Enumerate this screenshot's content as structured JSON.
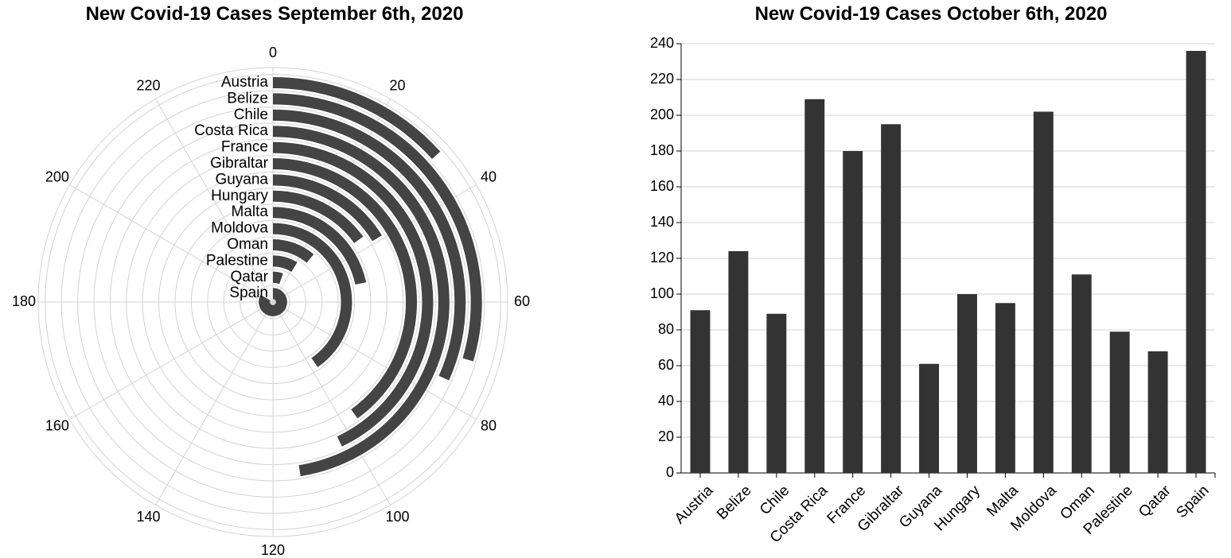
{
  "colors": {
    "bar": "#333333",
    "ring": "#444444",
    "grid": "#d3d3d3",
    "axis": "#000000"
  },
  "chart_data": [
    {
      "type": "radial-bar",
      "title": "New Covid-19 Cases September 6th, 2020",
      "angular_max": 240,
      "angular_ticks": [
        0,
        20,
        40,
        60,
        80,
        100,
        120,
        140,
        160,
        180,
        200,
        220
      ],
      "categories": [
        "Austria",
        "Belize",
        "Chile",
        "Costa Rica",
        "France",
        "Gibraltar",
        "Guyana",
        "Hungary",
        "Malta",
        "Moldova",
        "Oman",
        "Palestine",
        "Qatar",
        "Spain"
      ],
      "values": [
        32,
        71,
        76,
        114,
        103,
        96,
        39,
        36,
        52,
        97,
        27,
        21,
        13,
        200
      ],
      "grid": true
    },
    {
      "type": "bar",
      "title": "New Covid-19 Cases October 6th, 2020",
      "categories": [
        "Austria",
        "Belize",
        "Chile",
        "Costa Rica",
        "France",
        "Gibraltar",
        "Guyana",
        "Hungary",
        "Malta",
        "Moldova",
        "Oman",
        "Palestine",
        "Qatar",
        "Spain"
      ],
      "values": [
        91,
        124,
        89,
        209,
        180,
        195,
        61,
        100,
        95,
        202,
        111,
        79,
        68,
        236
      ],
      "ylim": [
        0,
        240
      ],
      "yticks": [
        0,
        20,
        40,
        60,
        80,
        100,
        120,
        140,
        160,
        180,
        200,
        220,
        240
      ],
      "grid": true
    }
  ]
}
